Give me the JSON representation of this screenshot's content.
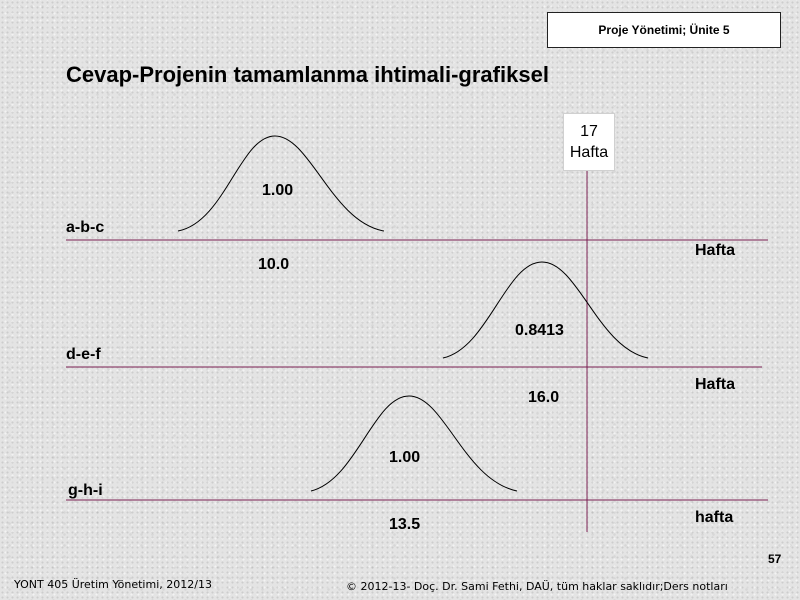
{
  "header": {
    "text": "Proje Yönetimi; Ünite 5"
  },
  "title": "Cevap-Projenin tamamlanma ihtimali-grafiksel",
  "target": {
    "value": "17",
    "unit": "Hafta"
  },
  "rows": [
    {
      "label": "a-b-c",
      "probability": "1.00",
      "mean": "10.0",
      "unit": "Hafta"
    },
    {
      "label": "d-e-f",
      "probability": "0.8413",
      "mean": "16.0",
      "unit": "Hafta"
    },
    {
      "label": "g-h-i",
      "probability": "1.00",
      "mean": "13.5",
      "unit": "hafta"
    }
  ],
  "slide_number": "57",
  "footer": {
    "left": "YONT 405 Üretim Yönetimi, 2012/13",
    "right": "© 2012-13- Doç. Dr. Sami Fethi, DAÜ, tüm haklar saklıdır;Ders notları"
  },
  "colors": {
    "axis_line": "#7a1f52",
    "curve": "#000000"
  }
}
